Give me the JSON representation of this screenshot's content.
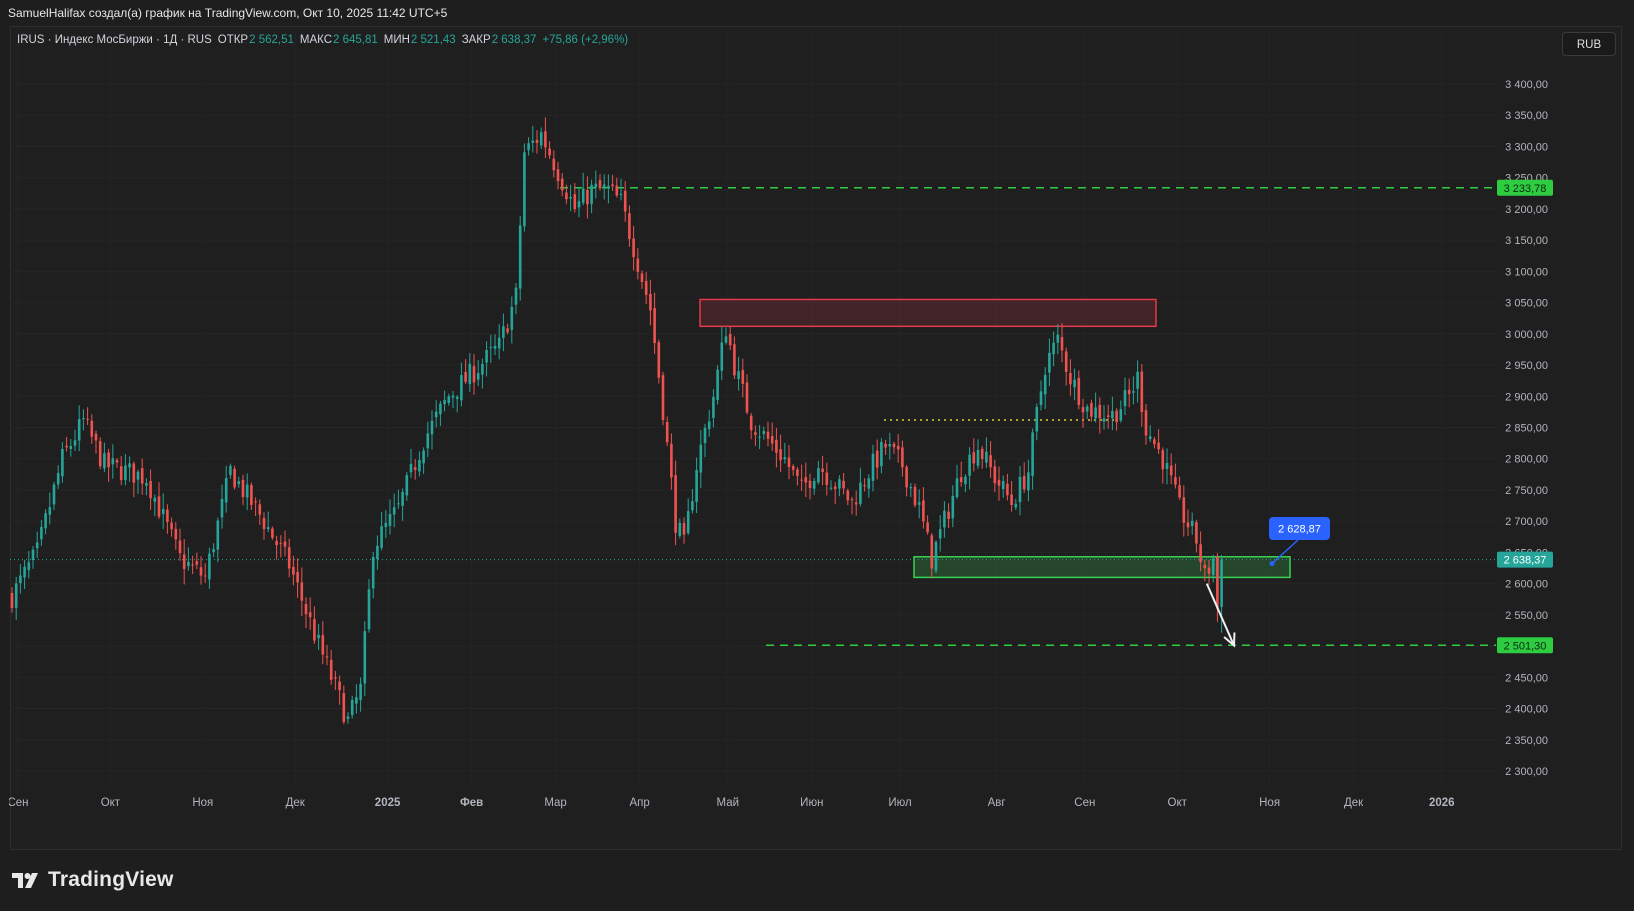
{
  "header": {
    "attribution": "SamuelHalifax создал(а) график на TradingView.com, Окт 10, 2025 11:42 UTC+5"
  },
  "legend": {
    "symbol": "IRUS · Индекс МосБиржи · 1Д · RUS",
    "open_label": "ОТКР",
    "open_value": "2 562,51",
    "high_label": "МАКС",
    "high_value": "2 645,81",
    "low_label": "МИН",
    "low_value": "2 521,43",
    "close_label": "ЗАКР",
    "close_value": "2 638,37",
    "change": "+75,86 (+2,96%)"
  },
  "currency_button": "RUB",
  "footer": {
    "logo_text": "TradingView"
  },
  "colors": {
    "background": "#1f1f1f",
    "up": "#26a69a",
    "down": "#ef5350",
    "level_line": "#2ecc40",
    "resistance_zone": "#e5394c",
    "support_zone": "#39d353",
    "projection_label": "#2962ff",
    "dotted_level": "#d4d33a"
  },
  "chart_data": {
    "type": "candlestick",
    "y_axis": {
      "ticks": [
        "3 400,00",
        "3 350,00",
        "3 300,00",
        "3 250,00",
        "3 200,00",
        "3 150,00",
        "3 100,00",
        "3 050,00",
        "3 000,00",
        "2 950,00",
        "2 900,00",
        "2 850,00",
        "2 800,00",
        "2 750,00",
        "2 700,00",
        "2 650,00",
        "2 600,00",
        "2 550,00",
        "2 500,00",
        "2 450,00",
        "2 400,00",
        "2 350,00",
        "2 300,00"
      ],
      "tick_values": [
        3400,
        3350,
        3300,
        3250,
        3200,
        3150,
        3100,
        3050,
        3000,
        2950,
        2900,
        2850,
        2800,
        2750,
        2700,
        2650,
        2600,
        2550,
        2500,
        2450,
        2400,
        2350,
        2300
      ],
      "range": [
        2270,
        3465
      ]
    },
    "x_axis": {
      "labels": [
        "Сен",
        "Окт",
        "Ноя",
        "Дек",
        "2025",
        "Фев",
        "Мар",
        "Апр",
        "Май",
        "Июн",
        "Июл",
        "Авг",
        "Сен",
        "Окт",
        "Ноя",
        "Дек",
        "2026"
      ],
      "bold": [
        false,
        false,
        false,
        false,
        true,
        true,
        false,
        false,
        false,
        false,
        false,
        false,
        false,
        false,
        false,
        false,
        true
      ],
      "month_start_index": [
        0,
        22,
        44,
        66,
        88,
        108,
        128,
        148,
        169,
        189,
        210,
        233,
        254,
        276,
        298,
        318,
        339
      ]
    },
    "price_points": [
      [
        0,
        2580
      ],
      [
        6,
        2650
      ],
      [
        12,
        2800
      ],
      [
        17,
        2860
      ],
      [
        22,
        2790
      ],
      [
        32,
        2770
      ],
      [
        40,
        2640
      ],
      [
        46,
        2610
      ],
      [
        52,
        2780
      ],
      [
        60,
        2700
      ],
      [
        66,
        2630
      ],
      [
        72,
        2520
      ],
      [
        80,
        2380
      ],
      [
        83,
        2430
      ],
      [
        86,
        2660
      ],
      [
        92,
        2720
      ],
      [
        98,
        2830
      ],
      [
        104,
        2900
      ],
      [
        110,
        2940
      ],
      [
        116,
        2980
      ],
      [
        120,
        3060
      ],
      [
        122,
        3290
      ],
      [
        126,
        3320
      ],
      [
        130,
        3260
      ],
      [
        134,
        3200
      ],
      [
        138,
        3230
      ],
      [
        142,
        3230
      ],
      [
        145,
        3210
      ],
      [
        148,
        3140
      ],
      [
        152,
        3040
      ],
      [
        155,
        2880
      ],
      [
        158,
        2700
      ],
      [
        160,
        2660
      ],
      [
        163,
        2790
      ],
      [
        167,
        2900
      ],
      [
        170,
        3010
      ],
      [
        172,
        2950
      ],
      [
        176,
        2860
      ],
      [
        180,
        2830
      ],
      [
        184,
        2800
      ],
      [
        188,
        2750
      ],
      [
        192,
        2790
      ],
      [
        196,
        2760
      ],
      [
        200,
        2730
      ],
      [
        204,
        2780
      ],
      [
        208,
        2820
      ],
      [
        212,
        2790
      ],
      [
        216,
        2720
      ],
      [
        219,
        2640
      ],
      [
        222,
        2700
      ],
      [
        226,
        2780
      ],
      [
        230,
        2820
      ],
      [
        234,
        2770
      ],
      [
        238,
        2730
      ],
      [
        242,
        2780
      ],
      [
        244,
        2870
      ],
      [
        246,
        2950
      ],
      [
        249,
        2990
      ],
      [
        252,
        2930
      ],
      [
        256,
        2880
      ],
      [
        262,
        2870
      ],
      [
        266,
        2900
      ],
      [
        268,
        2930
      ],
      [
        270,
        2850
      ],
      [
        274,
        2800
      ],
      [
        278,
        2720
      ],
      [
        282,
        2670
      ],
      [
        284,
        2610
      ],
      [
        286,
        2640
      ],
      [
        287,
        2560
      ],
      [
        288,
        2638
      ]
    ],
    "current_price": {
      "value": 2638.37,
      "label": "2 638,37"
    },
    "annotations": {
      "upper_dashed_level": {
        "value": 3233.78,
        "label": "3 233,78"
      },
      "lower_dashed_level": {
        "value": 2501.3,
        "label": "2 501,30"
      },
      "dotted_level": {
        "value": 2862
      },
      "resistance_zone": {
        "from": 3012,
        "to": 3055
      },
      "support_zone": {
        "from": 2610,
        "to": 2643
      },
      "projection_label": {
        "value": 2628.87,
        "label": "2 628,87"
      },
      "arrow": {
        "from": [
          284,
          2600
        ],
        "to": [
          295,
          2501
        ]
      }
    }
  }
}
